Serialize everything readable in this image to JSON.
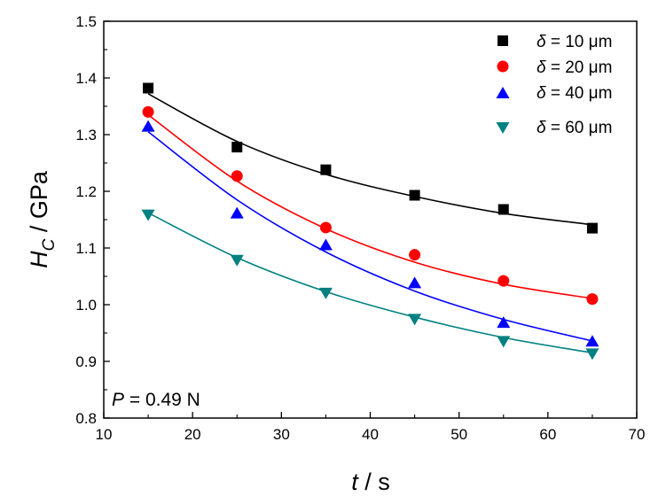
{
  "chart_data": {
    "type": "scatter",
    "xlabel": {
      "var": "t",
      "unit": " / s"
    },
    "ylabel": {
      "var": "H",
      "sub": "C",
      "unit": " / GPa"
    },
    "xlim": [
      10,
      70
    ],
    "ylim": [
      0.8,
      1.5
    ],
    "x_ticks": [
      "10",
      "20",
      "30",
      "40",
      "50",
      "60",
      "70"
    ],
    "y_ticks": [
      "0.8",
      "0.9",
      "1.0",
      "1.1",
      "1.2",
      "1.3",
      "1.4",
      "1.5"
    ],
    "x": [
      15,
      25,
      35,
      45,
      55,
      65
    ],
    "grid": false,
    "legend_position": "top-right",
    "series": [
      {
        "name": "δ = 10 μm",
        "symbol": "δ",
        "value_text": " = 10 μm",
        "marker": "square",
        "color": "#000000",
        "values": [
          1.382,
          1.278,
          1.238,
          1.193,
          1.168,
          1.135
        ],
        "fit": [
          1.372,
          1.288,
          1.23,
          1.191,
          1.161,
          1.141
        ]
      },
      {
        "name": "δ = 20 μm",
        "symbol": "δ",
        "value_text": " = 20 μm",
        "marker": "circle",
        "color": "#ff0000",
        "values": [
          1.34,
          1.227,
          1.136,
          1.088,
          1.042,
          1.01
        ],
        "fit": [
          1.335,
          1.218,
          1.134,
          1.075,
          1.036,
          1.011
        ]
      },
      {
        "name": "δ = 40 μm",
        "symbol": "δ",
        "value_text": " = 40 μm",
        "marker": "triangle-up",
        "color": "#0000ff",
        "values": [
          1.313,
          1.16,
          1.104,
          1.037,
          0.967,
          0.934
        ],
        "fit": [
          1.305,
          1.185,
          1.093,
          1.024,
          0.974,
          0.936
        ]
      },
      {
        "name": "δ = 60 μm",
        "symbol": "δ",
        "value_text": " = 60 μm",
        "marker": "triangle-down",
        "color": "#008080",
        "values": [
          1.16,
          1.08,
          1.022,
          0.976,
          0.937,
          0.915
        ],
        "fit": [
          1.162,
          1.083,
          1.023,
          0.978,
          0.942,
          0.915
        ]
      }
    ],
    "annotation": {
      "var": "P",
      "value_text": " = 0.49 N"
    }
  }
}
